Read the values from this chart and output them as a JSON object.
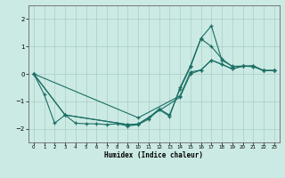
{
  "xlabel": "Humidex (Indice chaleur)",
  "background_color": "#cceae4",
  "grid_color": "#aaccc6",
  "line_color": "#1a6e64",
  "xlim": [
    -0.5,
    23.5
  ],
  "ylim": [
    -2.5,
    2.5
  ],
  "xticks": [
    0,
    1,
    2,
    3,
    4,
    5,
    6,
    7,
    8,
    9,
    10,
    11,
    12,
    13,
    14,
    15,
    16,
    17,
    18,
    19,
    20,
    21,
    22,
    23
  ],
  "yticks": [
    -2,
    -1,
    0,
    1,
    2
  ],
  "lines": [
    {
      "x": [
        0,
        1,
        2,
        3,
        4,
        5,
        6,
        7,
        8,
        9,
        10,
        11,
        12,
        13,
        14,
        15,
        16,
        17,
        18,
        19,
        20,
        21,
        22,
        23
      ],
      "y": [
        0.0,
        -0.75,
        -1.8,
        -1.5,
        -1.8,
        -1.82,
        -1.82,
        -1.85,
        -1.82,
        -1.9,
        -1.85,
        -1.65,
        -1.3,
        -1.55,
        -0.5,
        0.3,
        1.3,
        1.75,
        0.5,
        0.28,
        0.28,
        0.3,
        0.12,
        0.12
      ]
    },
    {
      "x": [
        0,
        3,
        9,
        10,
        11,
        12,
        13,
        14,
        15,
        16,
        17,
        18,
        19,
        20,
        21,
        22,
        23
      ],
      "y": [
        0.0,
        -1.5,
        -1.85,
        -1.83,
        -1.6,
        -1.28,
        -1.5,
        -0.55,
        0.25,
        1.28,
        1.0,
        0.55,
        0.27,
        0.28,
        0.27,
        0.12,
        0.12
      ]
    },
    {
      "x": [
        0,
        10,
        14,
        15,
        16,
        17,
        18,
        19,
        20,
        21,
        22,
        23
      ],
      "y": [
        0.0,
        -1.6,
        -0.8,
        0.07,
        0.14,
        0.5,
        0.35,
        0.18,
        0.28,
        0.28,
        0.12,
        0.12
      ]
    },
    {
      "x": [
        0,
        3,
        9,
        10,
        14,
        15,
        16,
        17,
        18,
        19,
        20,
        21,
        22,
        23
      ],
      "y": [
        0.0,
        -1.5,
        -1.85,
        -1.83,
        -0.85,
        0.0,
        0.14,
        0.5,
        0.35,
        0.18,
        0.28,
        0.27,
        0.12,
        0.12
      ]
    }
  ]
}
